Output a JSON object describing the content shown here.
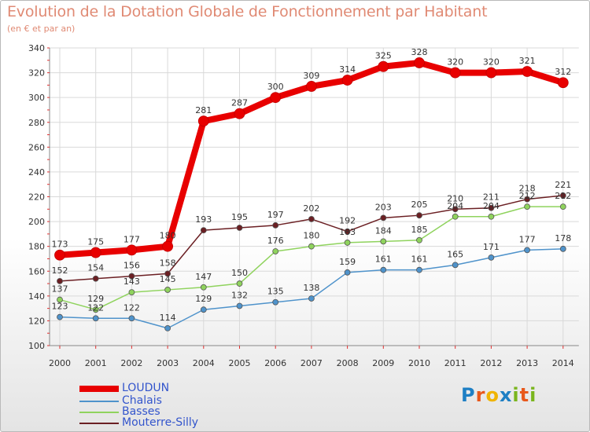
{
  "title": "Evolution de la Dotation Globale de Fonctionnement par Habitant",
  "subtitle": "(en € et par an)",
  "logo": {
    "text": "Proxiti",
    "letters": [
      "P",
      "r",
      "o",
      "x",
      "i",
      "t",
      "i"
    ],
    "colors": [
      "#1e7fc4",
      "#e8581b",
      "#f0b400",
      "#1e7fc4",
      "#7ab51d",
      "#e8581b",
      "#7ab51d"
    ]
  },
  "chart_data": {
    "type": "line",
    "categories": [
      "2000",
      "2001",
      "2002",
      "2003",
      "2004",
      "2005",
      "2006",
      "2007",
      "2008",
      "2009",
      "2010",
      "2011",
      "2012",
      "2013",
      "2014"
    ],
    "ylim": [
      100,
      340
    ],
    "yticks": [
      100,
      120,
      140,
      160,
      180,
      200,
      220,
      240,
      260,
      280,
      300,
      320,
      340
    ],
    "grid": true,
    "series": [
      {
        "name": "LOUDUN",
        "color": "#e80000",
        "values": [
          173,
          175,
          177,
          180,
          281,
          287,
          300,
          309,
          314,
          325,
          328,
          320,
          320,
          321,
          312
        ]
      },
      {
        "name": "Chalais",
        "color": "#4f93cb",
        "values": [
          123,
          122,
          122,
          114,
          129,
          132,
          135,
          138,
          159,
          161,
          161,
          165,
          171,
          177,
          178
        ]
      },
      {
        "name": "Basses",
        "color": "#8fd35d",
        "values": [
          137,
          129,
          143,
          145,
          147,
          150,
          176,
          180,
          183,
          184,
          185,
          204,
          204,
          212,
          212
        ]
      },
      {
        "name": "Mouterre-Silly",
        "color": "#6b1f23",
        "values": [
          152,
          154,
          156,
          158,
          193,
          195,
          197,
          202,
          192,
          203,
          205,
          210,
          211,
          218,
          221
        ]
      }
    ]
  }
}
